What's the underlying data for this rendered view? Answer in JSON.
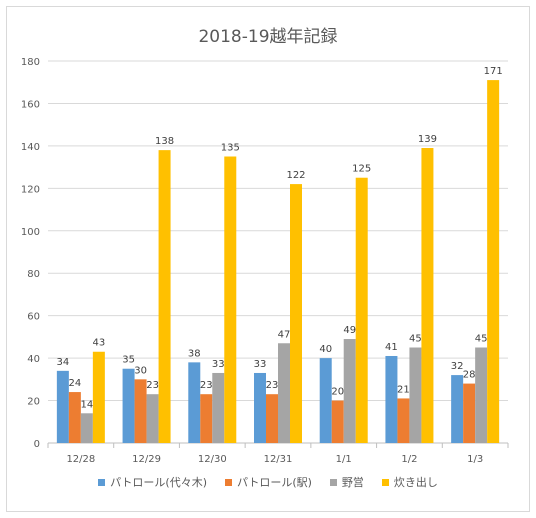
{
  "chart_data": {
    "type": "bar",
    "title": "2018-19越年記録",
    "xlabel": "",
    "ylabel": "",
    "ylim": [
      0,
      180
    ],
    "yticks": [
      0,
      20,
      40,
      60,
      80,
      100,
      120,
      140,
      160,
      180
    ],
    "categories": [
      "12/28",
      "12/29",
      "12/30",
      "12/31",
      "1/1",
      "1/2",
      "1/3"
    ],
    "grid": true,
    "legend_position": "bottom",
    "series": [
      {
        "name": "パトロール(代々木)",
        "color": "#5b9bd5",
        "values": [
          34,
          35,
          38,
          33,
          40,
          41,
          32
        ]
      },
      {
        "name": "パトロール(駅)",
        "color": "#ed7d31",
        "values": [
          24,
          30,
          23,
          23,
          20,
          21,
          28
        ]
      },
      {
        "name": "野営",
        "color": "#a5a5a5",
        "values": [
          14,
          23,
          33,
          47,
          49,
          45,
          45
        ]
      },
      {
        "name": "炊き出し",
        "color": "#ffc000",
        "values": [
          43,
          138,
          135,
          122,
          125,
          139,
          171
        ]
      }
    ]
  }
}
